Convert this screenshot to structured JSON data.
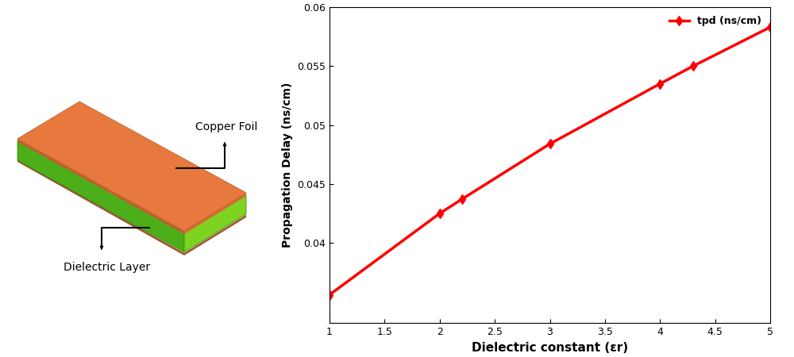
{
  "diagram": {
    "top_label": "Copper Foil",
    "side_label": "Dielectric Layer"
  },
  "chart_data": {
    "type": "line",
    "x_label": "Dielectric constant (εr)",
    "y_label": "Propagation Delay (ns/cm)",
    "x": [
      1,
      2,
      2.2,
      3,
      4,
      4.3,
      5
    ],
    "series": [
      {
        "name": "tpd (ns/cm)",
        "color": "#ff0000",
        "marker": "diamond",
        "line_style": "solid",
        "values": [
          0.0356,
          0.0425,
          0.0437,
          0.0484,
          0.0535,
          0.055,
          0.0583
        ]
      }
    ],
    "xlim": [
      1,
      5
    ],
    "xticks": [
      1,
      1.5,
      2,
      2.5,
      3,
      3.5,
      4,
      4.5,
      5
    ],
    "ylim": [
      0.0332,
      0.06
    ],
    "yticks": [
      0.04,
      0.045,
      0.05,
      0.055,
      0.06
    ],
    "grid": false,
    "legend": "upper right"
  }
}
